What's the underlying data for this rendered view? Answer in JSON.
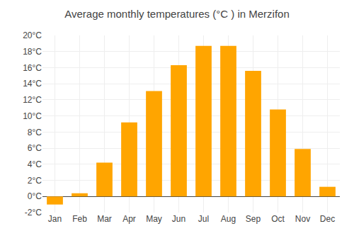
{
  "chart_data": {
    "type": "bar",
    "title": "Average monthly temperatures (°C ) in Merzifon",
    "categories": [
      "Jan",
      "Feb",
      "Mar",
      "Apr",
      "May",
      "Jun",
      "Jul",
      "Aug",
      "Sep",
      "Oct",
      "Nov",
      "Dec"
    ],
    "values": [
      -1.0,
      0.4,
      4.2,
      9.2,
      13.1,
      16.3,
      18.7,
      18.7,
      15.6,
      10.8,
      5.9,
      1.2
    ],
    "color": "#FFA500",
    "ylim": [
      -2,
      20
    ],
    "yticks": [
      {
        "value": -2,
        "label": "-2°C"
      },
      {
        "value": 0,
        "label": "0°C"
      },
      {
        "value": 2,
        "label": "2°C"
      },
      {
        "value": 4,
        "label": "4°C"
      },
      {
        "value": 6,
        "label": "6°C"
      },
      {
        "value": 8,
        "label": "8°C"
      },
      {
        "value": 10,
        "label": "10°C"
      },
      {
        "value": 12,
        "label": "12°C"
      },
      {
        "value": 14,
        "label": "14°C"
      },
      {
        "value": 16,
        "label": "16°C"
      },
      {
        "value": 18,
        "label": "18°C"
      },
      {
        "value": 20,
        "label": "20°C"
      }
    ],
    "grid": true
  }
}
